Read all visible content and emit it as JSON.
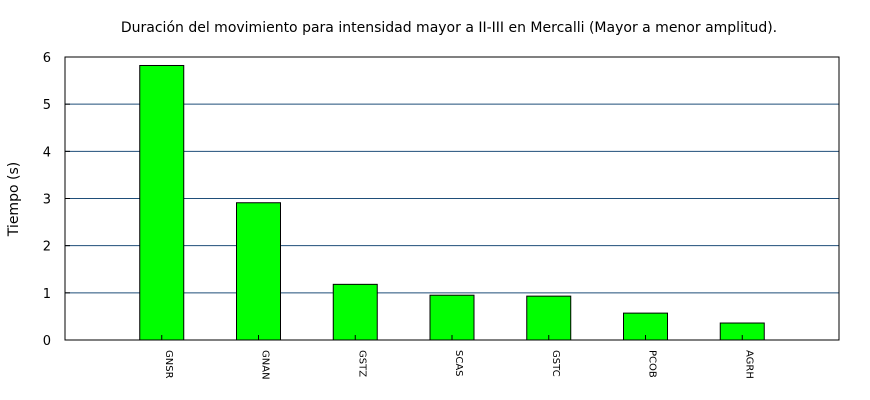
{
  "chart_data": {
    "type": "bar",
    "title": "Duración del movimiento para intensidad mayor a II-III en Mercalli (Mayor a menor amplitud).",
    "xlabel": "",
    "ylabel": "Tiempo (s)",
    "categories": [
      "GNSR",
      "GNAN",
      "GSTZ",
      "SCAS",
      "GSTC",
      "PCOB",
      "AGRH"
    ],
    "values": [
      5.82,
      2.91,
      1.18,
      0.95,
      0.93,
      0.57,
      0.36
    ],
    "ylim": [
      0,
      6
    ],
    "yticks": [
      "0",
      "1",
      "2",
      "3",
      "4",
      "5",
      "6"
    ],
    "grid": true,
    "legend": "none",
    "bar_color": "#00ff00",
    "bar_edge_color": "#000000",
    "grid_color": "#1f4e79"
  }
}
